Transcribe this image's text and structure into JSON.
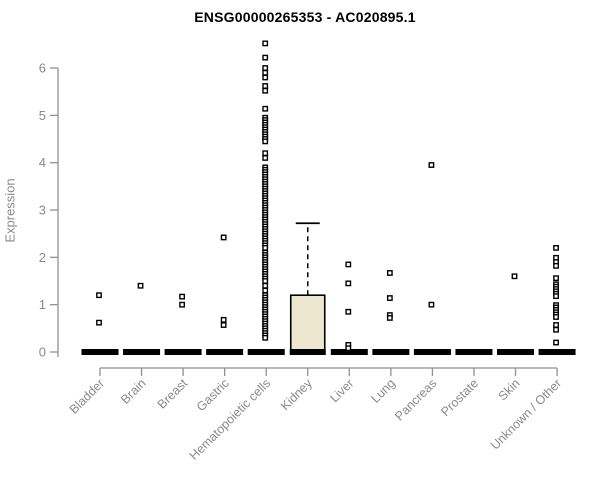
{
  "chart_data": {
    "type": "boxplot",
    "title": "ENSG00000265353 - AC020895.1",
    "ylabel": "Expression",
    "xlabel": "",
    "ylim": [
      0,
      6.6
    ],
    "yticks": [
      0,
      1,
      2,
      3,
      4,
      5,
      6
    ],
    "grid": "off",
    "legend": "none",
    "categories": [
      "Bladder",
      "Brain",
      "Breast",
      "Gastric",
      "Hematopoietic cells",
      "Kidney",
      "Liver",
      "Lung",
      "Pancreas",
      "Prostate",
      "Skin",
      "Unknown / Other"
    ],
    "boxes": [
      {
        "category": "Bladder",
        "q1": 0,
        "median": 0,
        "q3": 0,
        "whisker_low": 0,
        "whisker_high": 0,
        "outliers": [
          1.2,
          0.62
        ]
      },
      {
        "category": "Brain",
        "q1": 0,
        "median": 0,
        "q3": 0,
        "whisker_low": 0,
        "whisker_high": 0,
        "outliers": [
          1.4
        ]
      },
      {
        "category": "Breast",
        "q1": 0,
        "median": 0,
        "q3": 0,
        "whisker_low": 0,
        "whisker_high": 0,
        "outliers": [
          1.17,
          1.0
        ]
      },
      {
        "category": "Gastric",
        "q1": 0,
        "median": 0,
        "q3": 0,
        "whisker_low": 0,
        "whisker_high": 0,
        "outliers": [
          2.42,
          0.68,
          0.57
        ]
      },
      {
        "category": "Hematopoietic cells",
        "q1": 0,
        "median": 0,
        "q3": 0,
        "whisker_low": 0,
        "whisker_high": 0,
        "outliers": [
          6.52,
          6.22,
          6.0,
          5.9,
          5.8,
          5.62,
          5.52,
          5.14,
          4.95,
          4.9,
          4.85,
          4.8,
          4.75,
          4.7,
          4.65,
          4.6,
          4.55,
          4.5,
          4.45,
          4.2,
          4.1,
          3.9,
          3.85,
          3.8,
          3.75,
          3.7,
          3.65,
          3.6,
          3.55,
          3.5,
          3.45,
          3.4,
          3.35,
          3.3,
          3.25,
          3.2,
          3.15,
          3.1,
          3.05,
          3.0,
          2.95,
          2.9,
          2.85,
          2.8,
          2.75,
          2.7,
          2.65,
          2.6,
          2.55,
          2.5,
          2.45,
          2.4,
          2.35,
          2.3,
          2.25,
          2.2,
          2.1,
          2.05,
          2.0,
          1.95,
          1.9,
          1.85,
          1.8,
          1.75,
          1.7,
          1.65,
          1.6,
          1.55,
          1.5,
          1.4,
          1.3,
          1.2,
          1.15,
          1.1,
          1.05,
          1.0,
          0.95,
          0.9,
          0.85,
          0.8,
          0.75,
          0.7,
          0.65,
          0.6,
          0.55,
          0.5,
          0.45,
          0.4,
          0.35,
          0.3
        ]
      },
      {
        "category": "Kidney",
        "q1": 0,
        "median": 0,
        "q3": 1.2,
        "whisker_low": 0,
        "whisker_high": 2.72,
        "outliers": []
      },
      {
        "category": "Liver",
        "q1": 0,
        "median": 0,
        "q3": 0,
        "whisker_low": 0,
        "whisker_high": 0,
        "outliers": [
          1.85,
          1.45,
          0.85,
          0.15,
          0.08
        ]
      },
      {
        "category": "Lung",
        "q1": 0,
        "median": 0,
        "q3": 0,
        "whisker_low": 0,
        "whisker_high": 0,
        "outliers": [
          1.67,
          1.14,
          0.78,
          0.72
        ]
      },
      {
        "category": "Pancreas",
        "q1": 0,
        "median": 0,
        "q3": 0,
        "whisker_low": 0,
        "whisker_high": 0,
        "outliers": [
          3.95,
          1.0
        ]
      },
      {
        "category": "Prostate",
        "q1": 0,
        "median": 0,
        "q3": 0,
        "whisker_low": 0,
        "whisker_high": 0,
        "outliers": []
      },
      {
        "category": "Skin",
        "q1": 0,
        "median": 0,
        "q3": 0,
        "whisker_low": 0,
        "whisker_high": 0,
        "outliers": [
          1.6
        ]
      },
      {
        "category": "Unknown / Other",
        "q1": 0,
        "median": 0,
        "q3": 0,
        "whisker_low": 0,
        "whisker_high": 0,
        "outliers": [
          2.2,
          1.99,
          1.9,
          1.82,
          1.56,
          1.43,
          1.38,
          1.33,
          1.28,
          1.23,
          1.18,
          0.99,
          0.94,
          0.89,
          0.84,
          0.79,
          0.74,
          0.57,
          0.47,
          0.2
        ]
      }
    ],
    "colors": {
      "box_fill": "#ECE7CE",
      "box_stroke": "#000000",
      "median": "#000000",
      "outlier": "#000000",
      "axis_line": "#919191",
      "axis_text": "#8a8a8a",
      "title": "#000000",
      "background": "#ffffff"
    }
  }
}
